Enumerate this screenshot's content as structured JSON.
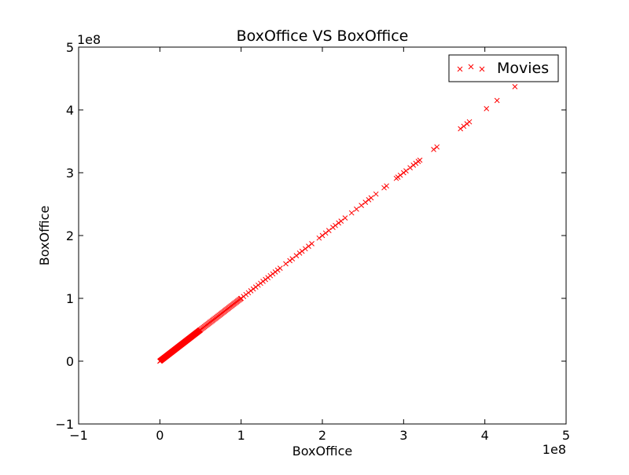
{
  "chart_data": {
    "type": "scatter",
    "title": "BoxOffice VS BoxOffice",
    "xlabel": "BoxOffice",
    "ylabel": "BoxOffice",
    "x_offset_label": "1e8",
    "y_offset_label": "1e8",
    "xlim": [
      -1,
      5
    ],
    "ylim": [
      -1,
      5
    ],
    "x_ticks": [
      "−1",
      "0",
      "1",
      "2",
      "3",
      "4",
      "5"
    ],
    "y_ticks": [
      "−1",
      "0",
      "1",
      "2",
      "3",
      "4",
      "5"
    ],
    "x_tick_values": [
      -1,
      0,
      1,
      2,
      3,
      4,
      5
    ],
    "y_tick_values": [
      -1,
      0,
      1,
      2,
      3,
      4,
      5
    ],
    "scale_note": "values in units of 1e8",
    "grid": false,
    "legend_position": "top-right",
    "series": [
      {
        "name": "Movies",
        "marker": "x",
        "color": "#ff0000",
        "dense_ranges": [
          [
            0.0,
            0.5,
            0.004
          ],
          [
            0.5,
            1.0,
            0.012
          ],
          [
            1.0,
            1.5,
            0.03
          ]
        ],
        "x": [
          1.55,
          1.6,
          1.63,
          1.68,
          1.72,
          1.75,
          1.79,
          1.83,
          1.87,
          1.96,
          2.0,
          2.04,
          2.08,
          2.13,
          2.16,
          2.2,
          2.23,
          2.28,
          2.36,
          2.42,
          2.48,
          2.53,
          2.57,
          2.6,
          2.66,
          2.76,
          2.79,
          2.91,
          2.93,
          2.96,
          3.0,
          3.03,
          3.08,
          3.12,
          3.15,
          3.18,
          3.2,
          3.37,
          3.41,
          3.7,
          3.74,
          3.78,
          3.81,
          4.02,
          4.15,
          4.37
        ]
      }
    ]
  }
}
